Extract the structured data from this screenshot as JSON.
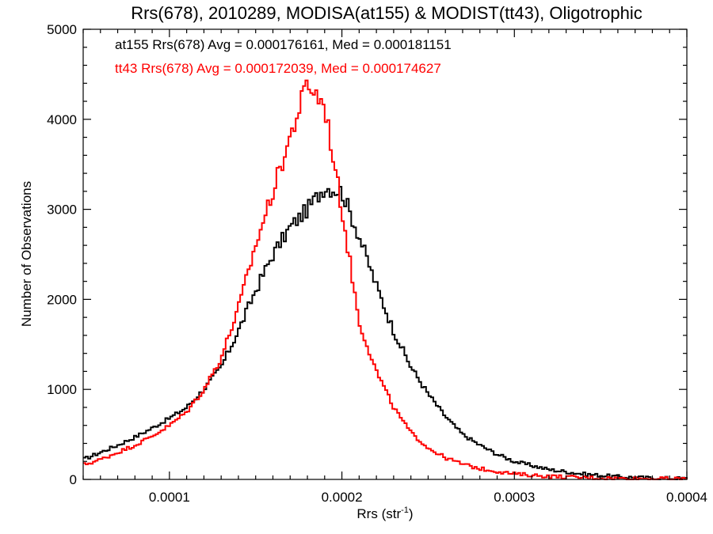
{
  "chart_data": {
    "type": "line",
    "title": "Rrs(678), 2010289, MODISA(at155) & MODIST(tt43), Oligotrophic",
    "xlabel_main": "Rrs (str",
    "xlabel_sup": "-1",
    "xlabel_close": ")",
    "ylabel": "Number of Observations",
    "xlim": [
      5e-05,
      0.0004
    ],
    "ylim": [
      0,
      5000
    ],
    "x_ticks": [
      0.0001,
      0.0002,
      0.0003,
      0.0004
    ],
    "x_tick_labels": [
      "0.0001",
      "0.0002",
      "0.0003",
      "0.0004"
    ],
    "y_ticks": [
      0,
      1000,
      2000,
      3000,
      4000,
      5000
    ],
    "y_tick_labels": [
      "0",
      "1000",
      "2000",
      "3000",
      "4000",
      "5000"
    ],
    "step_style": "histogram",
    "annotations": [
      {
        "text": "at155 Rrs(678) Avg = 0.000176161, Med = 0.000181151",
        "color": "#000000"
      },
      {
        "text": "tt43 Rrs(678) Avg = 0.000172039, Med = 0.000174627",
        "color": "#ff0000"
      }
    ],
    "series": [
      {
        "color": "#000000",
        "x": [
          5e-05,
          6e-05,
          7e-05,
          8e-05,
          9e-05,
          0.0001,
          0.00011,
          0.00012,
          0.00013,
          0.00014,
          0.00015,
          0.00016,
          0.00017,
          0.00018,
          0.00019,
          0.0002,
          0.00021,
          0.00022,
          0.00023,
          0.00024,
          0.00025,
          0.00026,
          0.00027,
          0.00028,
          0.00029,
          0.0003,
          0.00032,
          0.00034,
          0.00036,
          0.00038,
          0.0004
        ],
        "y": [
          220,
          300,
          380,
          470,
          570,
          680,
          800,
          1000,
          1250,
          1650,
          2100,
          2500,
          2800,
          3000,
          3250,
          3200,
          2700,
          2150,
          1650,
          1250,
          950,
          700,
          500,
          380,
          280,
          200,
          110,
          60,
          30,
          15,
          10
        ]
      },
      {
        "color": "#ff0000",
        "x": [
          5e-05,
          6e-05,
          7e-05,
          8e-05,
          9e-05,
          0.0001,
          0.00011,
          0.00012,
          0.00013,
          0.00014,
          0.00015,
          0.00016,
          0.00017,
          0.00018,
          0.00019,
          0.0002,
          0.00021,
          0.00022,
          0.00023,
          0.00024,
          0.00025,
          0.00026,
          0.00027,
          0.00028,
          0.00029,
          0.0003,
          0.00032,
          0.00034,
          0.00036,
          0.00038,
          0.0004
        ],
        "y": [
          160,
          220,
          300,
          380,
          480,
          600,
          750,
          1000,
          1350,
          1900,
          2600,
          3200,
          3800,
          4400,
          4150,
          3000,
          1750,
          1200,
          800,
          520,
          350,
          240,
          170,
          120,
          90,
          60,
          35,
          20,
          12,
          8,
          5
        ]
      }
    ]
  }
}
